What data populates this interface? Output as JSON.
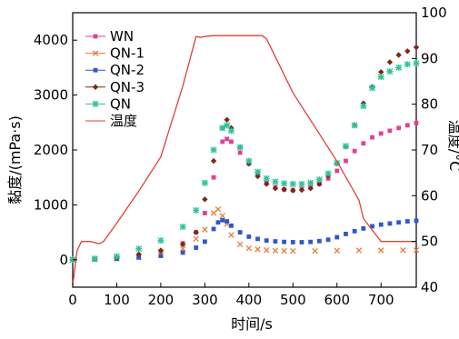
{
  "chart_data": {
    "type": "line",
    "xlabel": "时间/s",
    "ylabel_left": "黏度/(mPa·s)",
    "ylabel_right": "温度/°C",
    "xlim": [
      0,
      780
    ],
    "ylim_left": [
      -500,
      4500
    ],
    "ylim_right": [
      40,
      100
    ],
    "x_ticks": [
      0,
      100,
      200,
      300,
      400,
      500,
      600,
      700
    ],
    "y_ticks_left": [
      0,
      1000,
      2000,
      3000,
      4000
    ],
    "y_ticks_right": [
      40,
      50,
      60,
      70,
      80,
      90,
      100
    ],
    "legend_position": "top-left",
    "series": [
      {
        "name": "WN",
        "color": "#e0409a",
        "marker": "square",
        "axis": "left",
        "x": [
          0,
          50,
          100,
          150,
          200,
          250,
          280,
          300,
          320,
          340,
          350,
          360,
          380,
          400,
          420,
          440,
          460,
          480,
          500,
          520,
          540,
          560,
          580,
          600,
          620,
          640,
          660,
          680,
          700,
          720,
          740,
          760,
          780
        ],
        "y": [
          0,
          10,
          30,
          70,
          150,
          300,
          500,
          850,
          1500,
          2150,
          2200,
          2150,
          1950,
          1750,
          1550,
          1400,
          1320,
          1280,
          1270,
          1290,
          1320,
          1380,
          1480,
          1620,
          1800,
          1980,
          2120,
          2230,
          2300,
          2350,
          2400,
          2450,
          2490
        ]
      },
      {
        "name": "QN-1",
        "color": "#e97a3c",
        "marker": "x",
        "axis": "left",
        "x": [
          0,
          50,
          100,
          150,
          200,
          250,
          280,
          300,
          320,
          330,
          340,
          350,
          360,
          380,
          400,
          420,
          440,
          460,
          480,
          500,
          550,
          600,
          650,
          700,
          750,
          780
        ],
        "y": [
          0,
          10,
          20,
          50,
          100,
          200,
          380,
          550,
          850,
          920,
          800,
          650,
          450,
          280,
          210,
          190,
          175,
          165,
          160,
          160,
          160,
          165,
          170,
          170,
          175,
          175
        ]
      },
      {
        "name": "QN-2",
        "color": "#2f58c8",
        "marker": "square",
        "axis": "left",
        "x": [
          0,
          50,
          100,
          150,
          200,
          250,
          280,
          300,
          320,
          330,
          340,
          350,
          360,
          380,
          400,
          420,
          440,
          460,
          480,
          500,
          520,
          540,
          560,
          580,
          600,
          620,
          640,
          660,
          680,
          700,
          720,
          740,
          760,
          780
        ],
        "y": [
          0,
          10,
          20,
          40,
          70,
          130,
          220,
          330,
          560,
          680,
          720,
          700,
          620,
          500,
          420,
          380,
          350,
          335,
          325,
          320,
          320,
          325,
          340,
          365,
          410,
          470,
          520,
          570,
          610,
          640,
          660,
          680,
          700,
          710
        ]
      },
      {
        "name": "QN-3",
        "color": "#7a2a12",
        "marker": "diamond",
        "axis": "left",
        "x": [
          0,
          50,
          100,
          150,
          200,
          250,
          280,
          300,
          320,
          340,
          350,
          360,
          380,
          400,
          420,
          440,
          460,
          480,
          500,
          520,
          540,
          560,
          580,
          600,
          620,
          640,
          660,
          680,
          700,
          720,
          740,
          760,
          780
        ],
        "y": [
          0,
          15,
          40,
          100,
          170,
          280,
          500,
          1100,
          1800,
          2400,
          2550,
          2400,
          2050,
          1750,
          1520,
          1380,
          1300,
          1280,
          1260,
          1270,
          1300,
          1380,
          1530,
          1750,
          2060,
          2450,
          2850,
          3150,
          3420,
          3600,
          3730,
          3800,
          3870
        ]
      },
      {
        "name": "QN",
        "color": "#2fc39a",
        "marker": "asterisk",
        "axis": "left",
        "x": [
          0,
          50,
          100,
          150,
          200,
          250,
          280,
          300,
          320,
          340,
          350,
          360,
          380,
          400,
          420,
          440,
          460,
          480,
          500,
          520,
          540,
          560,
          580,
          600,
          620,
          640,
          660,
          680,
          700,
          720,
          740,
          760,
          780
        ],
        "y": [
          0,
          20,
          60,
          200,
          350,
          600,
          900,
          1400,
          2000,
          2400,
          2450,
          2350,
          2050,
          1800,
          1600,
          1480,
          1420,
          1390,
          1380,
          1380,
          1400,
          1460,
          1570,
          1760,
          2070,
          2450,
          2800,
          3130,
          3330,
          3430,
          3500,
          3560,
          3580
        ]
      },
      {
        "name": "温度",
        "color": "#e0403a",
        "marker": "none",
        "axis": "right",
        "x": [
          0,
          10,
          20,
          40,
          60,
          70,
          100,
          150,
          200,
          250,
          280,
          290,
          300,
          320,
          350,
          400,
          430,
          440,
          500,
          550,
          600,
          650,
          660,
          700,
          750,
          780
        ],
        "y": [
          40.5,
          48,
          50,
          50,
          49.5,
          50,
          54,
          61,
          68.5,
          84,
          94.8,
          94.6,
          94.8,
          95,
          95,
          95,
          95,
          94.3,
          82.5,
          75,
          67.5,
          59,
          55,
          50,
          50,
          50
        ]
      }
    ]
  }
}
